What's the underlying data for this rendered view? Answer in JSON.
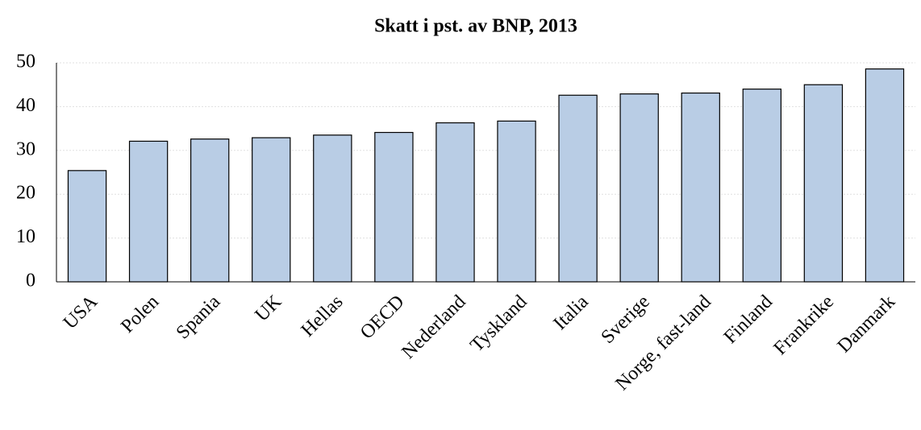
{
  "chart_data": {
    "type": "bar",
    "title": "Skatt i pst. av BNP, 2013",
    "categories": [
      "USA",
      "Polen",
      "Spania",
      "UK",
      "Hellas",
      "OECD",
      "Nederland",
      "Tyskland",
      "Italia",
      "Sverige",
      "Norge, fast-land",
      "Finland",
      "Frankrike",
      "Danmark"
    ],
    "values": [
      25.4,
      32.1,
      32.6,
      32.9,
      33.5,
      34.1,
      36.3,
      36.7,
      42.6,
      42.9,
      43.1,
      44.0,
      45.0,
      48.6
    ],
    "color": "#b9cde5",
    "ylim": [
      0,
      50
    ],
    "yticks": [
      0,
      10,
      20,
      30,
      40,
      50
    ],
    "grid": true
  }
}
